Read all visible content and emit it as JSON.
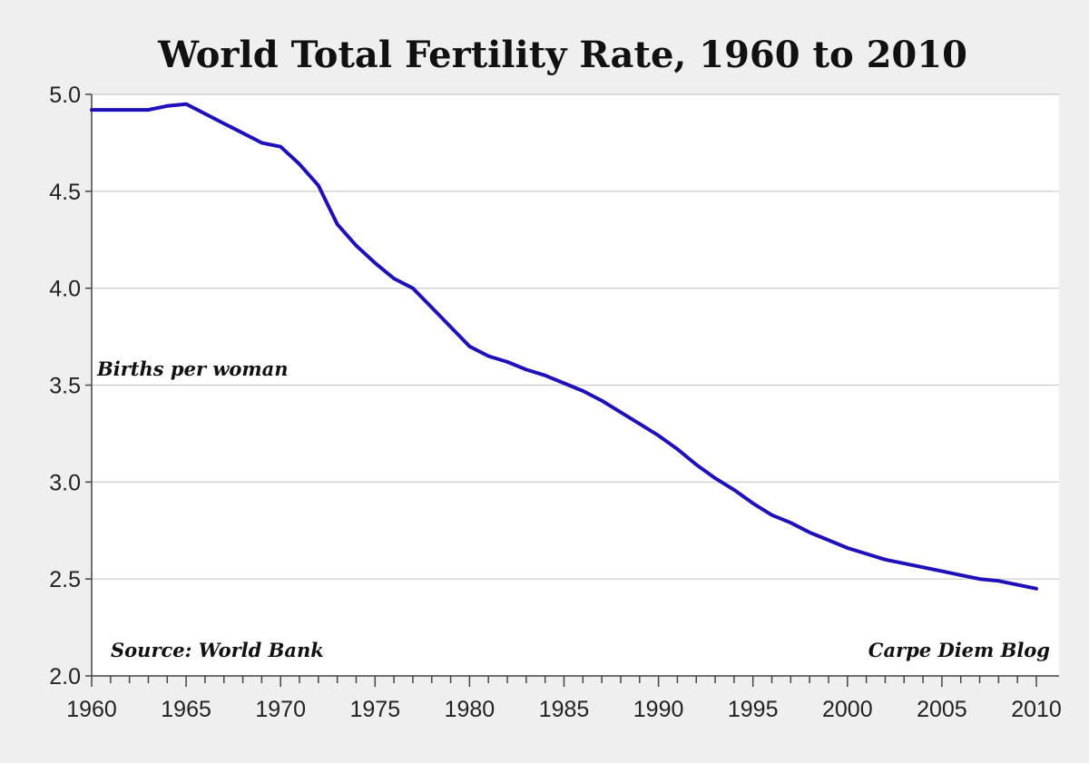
{
  "chart_data": {
    "type": "line",
    "title": "World Total Fertility Rate, 1960 to 2010",
    "ylabel": "Births per woman",
    "xlabel": "",
    "source": "Source: World Bank",
    "credit": "Carpe Diem Blog",
    "xlim": [
      1960,
      2010
    ],
    "ylim": [
      2.0,
      5.0
    ],
    "grid": true,
    "xticks": [
      "1960",
      "1965",
      "1970",
      "1975",
      "1980",
      "1985",
      "1990",
      "1995",
      "2000",
      "2005",
      "2010"
    ],
    "yticks": [
      "5.0",
      "4.5",
      "4.0",
      "3.5",
      "3.0",
      "2.5",
      "2.0"
    ],
    "series": [
      {
        "name": "Births per woman",
        "color": "#1f10b8",
        "x": [
          1960,
          1961,
          1962,
          1963,
          1964,
          1965,
          1966,
          1967,
          1968,
          1969,
          1970,
          1971,
          1972,
          1973,
          1974,
          1975,
          1976,
          1977,
          1978,
          1979,
          1980,
          1981,
          1982,
          1983,
          1984,
          1985,
          1986,
          1987,
          1988,
          1989,
          1990,
          1991,
          1992,
          1993,
          1994,
          1995,
          1996,
          1997,
          1998,
          1999,
          2000,
          2001,
          2002,
          2003,
          2004,
          2005,
          2006,
          2007,
          2008,
          2009,
          2010
        ],
        "values": [
          4.92,
          4.92,
          4.92,
          4.92,
          4.94,
          4.95,
          4.9,
          4.85,
          4.8,
          4.75,
          4.73,
          4.64,
          4.53,
          4.33,
          4.22,
          4.13,
          4.05,
          4.0,
          3.9,
          3.8,
          3.7,
          3.65,
          3.62,
          3.58,
          3.55,
          3.51,
          3.47,
          3.42,
          3.36,
          3.3,
          3.24,
          3.17,
          3.09,
          3.02,
          2.96,
          2.89,
          2.83,
          2.79,
          2.74,
          2.7,
          2.66,
          2.63,
          2.6,
          2.58,
          2.56,
          2.54,
          2.52,
          2.5,
          2.49,
          2.47,
          2.45
        ]
      }
    ]
  }
}
